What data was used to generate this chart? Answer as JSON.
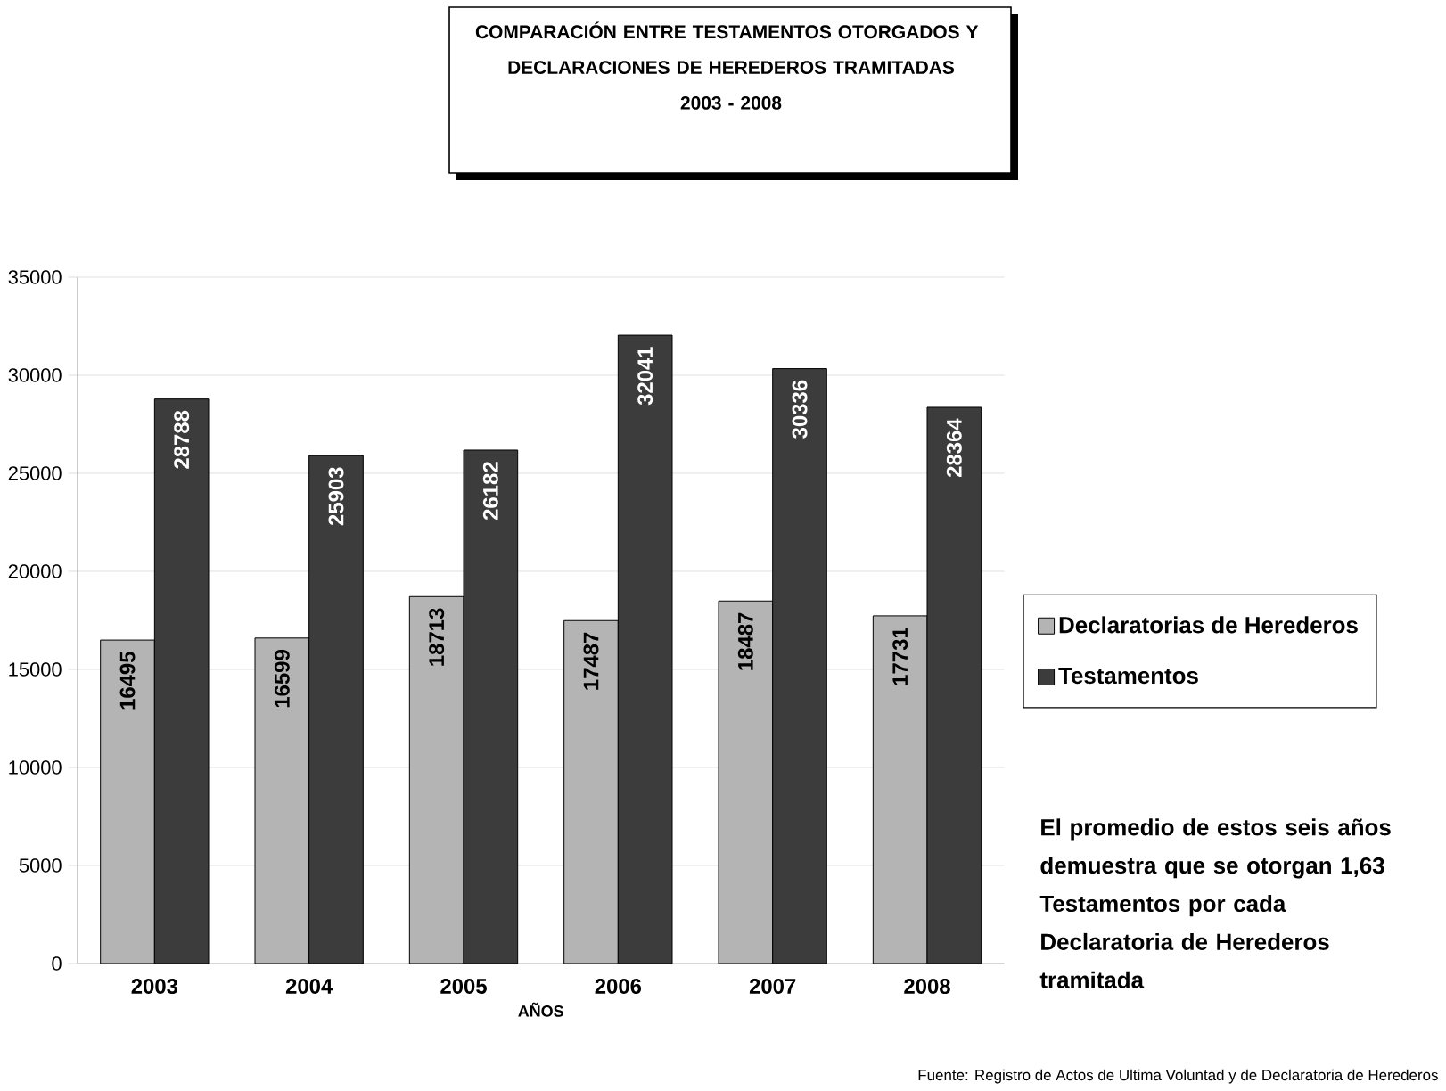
{
  "chart_data": {
    "type": "bar",
    "title": "COMPARACIÓN ENTRE TESTAMENTOS OTORGADOS Y DECLARACIONES DE HEREDEROS TRAMITADAS",
    "subtitle": "2003 - 2008",
    "xlabel": "AÑOS",
    "categories": [
      "2003",
      "2004",
      "2005",
      "2006",
      "2007",
      "2008"
    ],
    "series": [
      {
        "name": "Declaratorias de Herederos",
        "color": "#b4b4b4",
        "values": [
          16495,
          16599,
          18713,
          17487,
          18487,
          17731
        ]
      },
      {
        "name": "Testamentos",
        "color": "#3c3c3c",
        "values": [
          28788,
          25903,
          26182,
          32041,
          30336,
          28364
        ]
      }
    ],
    "ylim": [
      0,
      35000
    ],
    "yticks": [
      0,
      5000,
      10000,
      15000,
      20000,
      25000,
      30000,
      35000
    ],
    "grid": "y",
    "legend": "right",
    "data_labels": true,
    "annotations": [
      "El promedio de estos seis años demuestra que se otorgan 1,63 Testamentos por cada Declaratoria de Herederos tramitada",
      "Fuente: Registro de Actos de Ultima Voluntad y de Declaratoria de Herederos"
    ]
  }
}
